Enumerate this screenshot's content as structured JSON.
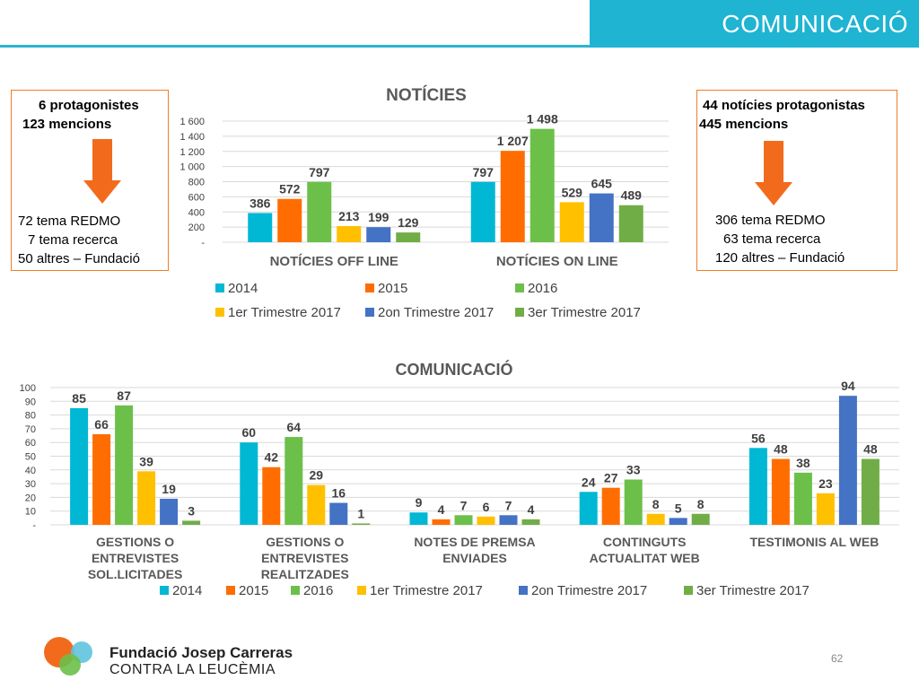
{
  "slide_title": "COMUNICACIÓ",
  "left_box": {
    "head1": "6 protagonistes",
    "head2": "123 mencions",
    "lines": [
      "72 tema REDMO",
      "7 tema recerca",
      "50 altres – Fundació"
    ]
  },
  "right_box": {
    "head1": "44 notícies protagonistas",
    "head2": "445 mencions",
    "lines": [
      "306 tema REDMO",
      "63 tema recerca",
      "120 altres – Fundació"
    ]
  },
  "colors": {
    "accent": "#1eb4d2",
    "arrow": "#f26b1d",
    "box_border": "#f07d28",
    "series": [
      "#00b8d4",
      "#ff6d00",
      "#6cc04a",
      "#ffc000",
      "#4472c4",
      "#70ad47"
    ]
  },
  "chart_data": [
    {
      "type": "bar",
      "title": "NOTÍCIES",
      "categories": [
        "NOTÍCIES OFF LINE",
        "NOTÍCIES ON LINE"
      ],
      "yticks": [
        "-",
        "200",
        "400",
        "600",
        "800",
        "1 000",
        "1 200",
        "1 400",
        "1 600"
      ],
      "ylim": [
        0,
        1600
      ],
      "grid": true,
      "legend": "bottom",
      "series": [
        {
          "name": "2014",
          "values": [
            386,
            797
          ],
          "labels": [
            "386",
            "797"
          ]
        },
        {
          "name": "2015",
          "values": [
            572,
            1207
          ],
          "labels": [
            "572",
            "1 207"
          ]
        },
        {
          "name": "2016",
          "values": [
            797,
            1498
          ],
          "labels": [
            "797",
            "1 498"
          ]
        },
        {
          "name": "1er Trimestre 2017",
          "values": [
            213,
            529
          ],
          "labels": [
            "213",
            "529"
          ]
        },
        {
          "name": "2on Trimestre 2017",
          "values": [
            199,
            645
          ],
          "labels": [
            "199",
            "645"
          ]
        },
        {
          "name": "3er Trimestre 2017",
          "values": [
            129,
            489
          ],
          "labels": [
            "129",
            "489"
          ]
        }
      ]
    },
    {
      "type": "bar",
      "title": "COMUNICACIÓ",
      "categories": [
        [
          "GESTIONS O",
          "ENTREVISTES",
          "SOL.LICITADES"
        ],
        [
          "GESTIONS O",
          "ENTREVISTES",
          "REALITZADES"
        ],
        [
          "NOTES DE PREMSA",
          "ENVIADES"
        ],
        [
          "CONTINGUTS",
          "ACTUALITAT WEB"
        ],
        [
          "TESTIMONIS AL WEB"
        ]
      ],
      "yticks": [
        "-",
        "10",
        "20",
        "30",
        "40",
        "50",
        "60",
        "70",
        "80",
        "90",
        "100"
      ],
      "ylim": [
        0,
        100
      ],
      "grid": true,
      "legend": "bottom",
      "series": [
        {
          "name": "2014",
          "values": [
            85,
            60,
            9,
            24,
            56
          ],
          "labels": [
            "85",
            "60",
            "9",
            "24",
            "56"
          ]
        },
        {
          "name": "2015",
          "values": [
            66,
            42,
            4,
            27,
            48
          ],
          "labels": [
            "66",
            "42",
            "4",
            "27",
            "48"
          ]
        },
        {
          "name": "2016",
          "values": [
            87,
            64,
            7,
            33,
            38
          ],
          "labels": [
            "87",
            "64",
            "7",
            "33",
            "38"
          ]
        },
        {
          "name": "1er Trimestre 2017",
          "values": [
            39,
            29,
            6,
            8,
            23
          ],
          "labels": [
            "39",
            "29",
            "6",
            "8",
            "23"
          ]
        },
        {
          "name": "2on Trimestre 2017",
          "values": [
            19,
            16,
            7,
            5,
            94
          ],
          "labels": [
            "19",
            "16",
            "7",
            "5",
            "94"
          ]
        },
        {
          "name": "3er Trimestre 2017",
          "values": [
            3,
            1,
            4,
            8,
            48
          ],
          "labels": [
            "3",
            "1",
            "4",
            "8",
            "48"
          ]
        }
      ]
    }
  ],
  "footer": {
    "org_line1": "Fundació Josep Carreras",
    "org_line2": "CONTRA LA LEUCÈMIA",
    "page_number": "62"
  }
}
